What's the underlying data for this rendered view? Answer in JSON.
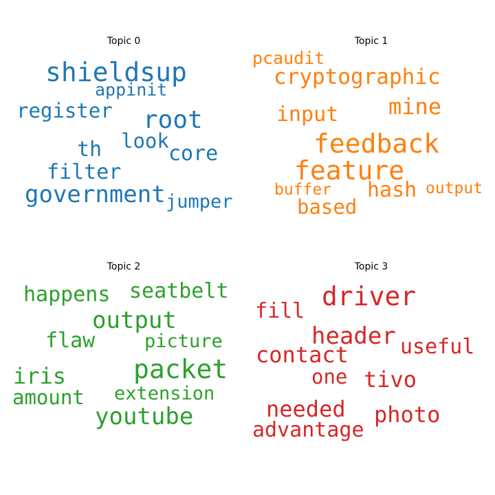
{
  "chart_data": [
    {
      "type": "wordcloud",
      "title": "Topic 0",
      "color": "#1f77b4",
      "words": [
        {
          "text": "shieldsup",
          "weight": 1.0
        },
        {
          "text": "root",
          "weight": 0.95
        },
        {
          "text": "register",
          "weight": 0.75
        },
        {
          "text": "appinit",
          "weight": 0.65
        },
        {
          "text": "look",
          "weight": 0.75
        },
        {
          "text": "th",
          "weight": 0.8
        },
        {
          "text": "core",
          "weight": 0.8
        },
        {
          "text": "filter",
          "weight": 0.8
        },
        {
          "text": "government",
          "weight": 0.9
        },
        {
          "text": "jumper",
          "weight": 0.7
        }
      ]
    },
    {
      "type": "wordcloud",
      "title": "Topic 1",
      "color": "#ff7f0e",
      "words": [
        {
          "text": "pcaudit",
          "weight": 0.65
        },
        {
          "text": "cryptographic",
          "weight": 0.82
        },
        {
          "text": "mine",
          "weight": 0.85
        },
        {
          "text": "input",
          "weight": 0.8
        },
        {
          "text": "feedback",
          "weight": 1.0
        },
        {
          "text": "feature",
          "weight": 1.0
        },
        {
          "text": "buffer",
          "weight": 0.6
        },
        {
          "text": "hash",
          "weight": 0.8
        },
        {
          "text": "output",
          "weight": 0.6
        },
        {
          "text": "based",
          "weight": 0.75
        }
      ]
    },
    {
      "type": "wordcloud",
      "title": "Topic 2",
      "color": "#2ca02c",
      "words": [
        {
          "text": "happens",
          "weight": 0.8
        },
        {
          "text": "seatbelt",
          "weight": 0.8
        },
        {
          "text": "output",
          "weight": 0.9
        },
        {
          "text": "flaw",
          "weight": 0.8
        },
        {
          "text": "picture",
          "weight": 0.7
        },
        {
          "text": "packet",
          "weight": 1.0
        },
        {
          "text": "iris",
          "weight": 0.85
        },
        {
          "text": "amount",
          "weight": 0.75
        },
        {
          "text": "extension",
          "weight": 0.7
        },
        {
          "text": "youtube",
          "weight": 0.9
        }
      ]
    },
    {
      "type": "wordcloud",
      "title": "Topic 3",
      "color": "#d62728",
      "words": [
        {
          "text": "driver",
          "weight": 1.0
        },
        {
          "text": "fill",
          "weight": 0.8
        },
        {
          "text": "header",
          "weight": 0.9
        },
        {
          "text": "useful",
          "weight": 0.8
        },
        {
          "text": "contact",
          "weight": 0.85
        },
        {
          "text": "one",
          "weight": 0.75
        },
        {
          "text": "tivo",
          "weight": 0.85
        },
        {
          "text": "needed",
          "weight": 0.85
        },
        {
          "text": "photo",
          "weight": 0.85
        },
        {
          "text": "advantage",
          "weight": 0.8
        }
      ]
    }
  ]
}
